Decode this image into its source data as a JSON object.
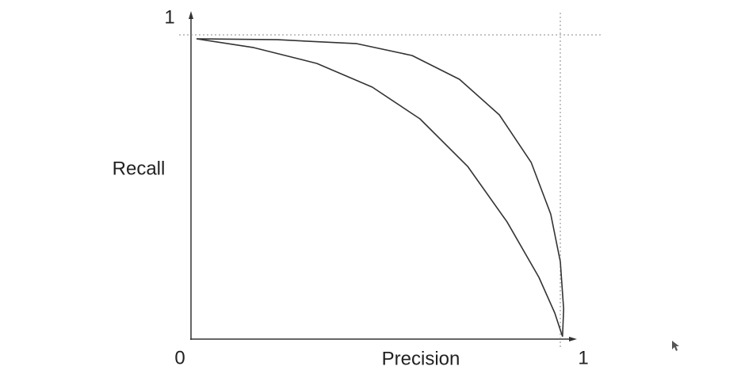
{
  "chart_data": {
    "type": "line",
    "x_label": "Precision",
    "y_label": "Recall",
    "xlim": [
      0,
      1
    ],
    "ylim": [
      0,
      1
    ],
    "xticks": [
      0,
      1
    ],
    "yticks": [
      1
    ],
    "grid": true,
    "series": [
      {
        "color": "#333333",
        "x": [
          0.015,
          0.234,
          0.449,
          0.599,
          0.727,
          0.835,
          0.921,
          0.974,
          1.0,
          1.009,
          1.006
        ],
        "values": [
          0.987,
          0.984,
          0.971,
          0.932,
          0.854,
          0.737,
          0.581,
          0.411,
          0.255,
          0.099,
          0.008
        ]
      },
      {
        "color": "#333333",
        "x": [
          0.015,
          0.17,
          0.341,
          0.491,
          0.62,
          0.749,
          0.856,
          0.942,
          0.985,
          1.006
        ],
        "values": [
          0.987,
          0.958,
          0.906,
          0.828,
          0.724,
          0.568,
          0.385,
          0.203,
          0.086,
          0.008
        ]
      }
    ]
  }
}
